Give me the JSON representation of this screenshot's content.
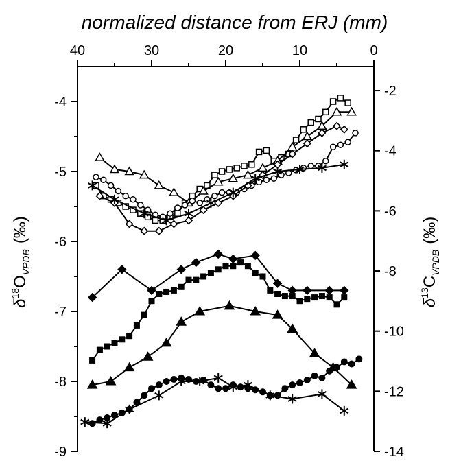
{
  "chart_data": {
    "type": "line",
    "title": "",
    "xlabel": "normalized distance from ERJ (mm)",
    "y_left_label": {
      "symbol": "δ",
      "sup": "18",
      "main": "O",
      "sub": "VPDB",
      "unit": "(‰)"
    },
    "y_right_label": {
      "symbol": "δ",
      "sup": "13",
      "main": "C",
      "sub": "VPDB",
      "unit": "(‰)"
    },
    "x_axis": {
      "position": "top",
      "reversed": true,
      "range": [
        40,
        0
      ],
      "ticks": [
        40,
        30,
        20,
        10,
        0
      ],
      "tick_labels": [
        "40",
        "30",
        "20",
        "10",
        "0"
      ]
    },
    "y_left": {
      "range": [
        -9,
        -3.5
      ],
      "ticks": [
        -9,
        -8,
        -7,
        -6,
        -5,
        -4
      ],
      "tick_labels": [
        "-9",
        "-8",
        "-7",
        "-6",
        "-5",
        "-4"
      ]
    },
    "y_right": {
      "range": [
        -14,
        -1.2
      ],
      "ticks": [
        -14,
        -12,
        -10,
        -8,
        -6,
        -4,
        -2
      ],
      "tick_labels": [
        "-14",
        "-12",
        "-10",
        "-8",
        "-6",
        "-4",
        "-2"
      ]
    },
    "grid": false,
    "legend": "none",
    "series": [
      {
        "marker": "open-square",
        "axis": "left",
        "points": [
          [
            37.5,
            -5.2
          ],
          [
            36.5,
            -5.35
          ],
          [
            35.5,
            -5.4
          ],
          [
            34.5,
            -5.45
          ],
          [
            33.5,
            -5.5
          ],
          [
            32.5,
            -5.55
          ],
          [
            31.5,
            -5.6
          ],
          [
            30.5,
            -5.65
          ],
          [
            29.5,
            -5.7
          ],
          [
            28.5,
            -5.7
          ],
          [
            27.5,
            -5.65
          ],
          [
            26.5,
            -5.6
          ],
          [
            25.5,
            -5.45
          ],
          [
            24.5,
            -5.35
          ],
          [
            23.5,
            -5.25
          ],
          [
            22.5,
            -5.2
          ],
          [
            21.5,
            -5.05
          ],
          [
            20.5,
            -5.0
          ],
          [
            19.5,
            -4.97
          ],
          [
            18.5,
            -4.95
          ],
          [
            17.5,
            -4.92
          ],
          [
            16.5,
            -4.9
          ],
          [
            15.5,
            -4.72
          ],
          [
            14.5,
            -4.7
          ],
          [
            13.5,
            -4.85
          ],
          [
            12.5,
            -4.8
          ],
          [
            11.5,
            -4.75
          ],
          [
            10.5,
            -4.55
          ],
          [
            9.5,
            -4.4
          ],
          [
            8.5,
            -4.3
          ],
          [
            7.5,
            -4.25
          ],
          [
            6.5,
            -4.15
          ],
          [
            5.5,
            -4.0
          ],
          [
            4.5,
            -3.95
          ],
          [
            3.5,
            -4.02
          ]
        ]
      },
      {
        "marker": "open-triangle",
        "axis": "left",
        "points": [
          [
            37,
            -4.8
          ],
          [
            35,
            -4.97
          ],
          [
            33,
            -5.0
          ],
          [
            31,
            -5.05
          ],
          [
            29,
            -5.2
          ],
          [
            27,
            -5.3
          ],
          [
            25,
            -5.45
          ],
          [
            23,
            -5.28
          ],
          [
            21,
            -5.15
          ],
          [
            19,
            -5.1
          ],
          [
            17,
            -5.05
          ],
          [
            15,
            -4.95
          ],
          [
            13,
            -4.85
          ],
          [
            11,
            -4.65
          ],
          [
            9,
            -4.5
          ],
          [
            7,
            -4.35
          ],
          [
            5,
            -4.15
          ],
          [
            3,
            -4.15
          ]
        ]
      },
      {
        "marker": "open-circle",
        "axis": "left",
        "points": [
          [
            37.5,
            -5.08
          ],
          [
            36.5,
            -5.12
          ],
          [
            35.5,
            -5.2
          ],
          [
            34.5,
            -5.28
          ],
          [
            33.5,
            -5.35
          ],
          [
            32.5,
            -5.4
          ],
          [
            31.5,
            -5.48
          ],
          [
            30.5,
            -5.55
          ],
          [
            29.5,
            -5.62
          ],
          [
            28.5,
            -5.65
          ],
          [
            27.5,
            -5.6
          ],
          [
            26.5,
            -5.52
          ],
          [
            25.5,
            -5.48
          ],
          [
            24.5,
            -5.42
          ],
          [
            23.5,
            -5.45
          ],
          [
            22.5,
            -5.4
          ],
          [
            21.5,
            -5.35
          ],
          [
            20.5,
            -5.3
          ],
          [
            19.5,
            -5.3
          ],
          [
            18.5,
            -5.3
          ],
          [
            17.5,
            -5.25
          ],
          [
            16.5,
            -5.2
          ],
          [
            15.5,
            -5.15
          ],
          [
            14.5,
            -5.12
          ],
          [
            13.5,
            -5.1
          ],
          [
            12.5,
            -5.05
          ],
          [
            11.5,
            -5.02
          ],
          [
            10.5,
            -4.98
          ],
          [
            9.5,
            -4.95
          ],
          [
            8.5,
            -4.92
          ],
          [
            7.5,
            -4.92
          ],
          [
            6.5,
            -4.85
          ],
          [
            5.5,
            -4.65
          ],
          [
            4.5,
            -4.62
          ],
          [
            3.5,
            -4.58
          ],
          [
            2.5,
            -4.45
          ]
        ]
      },
      {
        "marker": "open-diamond",
        "axis": "left",
        "points": [
          [
            37,
            -5.35
          ],
          [
            35,
            -5.45
          ],
          [
            33,
            -5.75
          ],
          [
            31,
            -5.85
          ],
          [
            29,
            -5.85
          ],
          [
            27,
            -5.75
          ],
          [
            25,
            -5.7
          ],
          [
            23,
            -5.55
          ],
          [
            21,
            -5.45
          ],
          [
            19,
            -5.35
          ],
          [
            17,
            -5.2
          ],
          [
            15,
            -5.05
          ],
          [
            13,
            -4.9
          ],
          [
            11,
            -4.75
          ],
          [
            9,
            -4.6
          ],
          [
            7,
            -4.45
          ],
          [
            5,
            -4.35
          ],
          [
            4,
            -4.4
          ]
        ]
      },
      {
        "marker": "asterisk",
        "axis": "left",
        "points": [
          [
            38,
            -5.2
          ],
          [
            35,
            -5.4
          ],
          [
            31,
            -5.6
          ],
          [
            28,
            -5.7
          ],
          [
            25,
            -5.6
          ],
          [
            22,
            -5.45
          ],
          [
            19,
            -5.3
          ],
          [
            16,
            -5.1
          ],
          [
            13,
            -5.0
          ],
          [
            10,
            -4.97
          ],
          [
            7,
            -4.95
          ],
          [
            4,
            -4.9
          ]
        ]
      },
      {
        "marker": "filled-diamond",
        "axis": "left",
        "points": [
          [
            38,
            -6.8
          ],
          [
            34,
            -6.4
          ],
          [
            30,
            -6.7
          ],
          [
            26,
            -6.4
          ],
          [
            24,
            -6.3
          ],
          [
            21,
            -6.18
          ],
          [
            19,
            -6.25
          ],
          [
            16,
            -6.2
          ],
          [
            13,
            -6.6
          ],
          [
            11,
            -6.7
          ],
          [
            9,
            -6.7
          ],
          [
            6,
            -6.7
          ],
          [
            4,
            -6.7
          ]
        ]
      },
      {
        "marker": "filled-square",
        "axis": "left",
        "points": [
          [
            38,
            -7.7
          ],
          [
            37,
            -7.55
          ],
          [
            36,
            -7.5
          ],
          [
            35,
            -7.45
          ],
          [
            34,
            -7.4
          ],
          [
            33,
            -7.35
          ],
          [
            32,
            -7.2
          ],
          [
            31,
            -7.05
          ],
          [
            30,
            -6.85
          ],
          [
            29,
            -6.75
          ],
          [
            28,
            -6.72
          ],
          [
            27,
            -6.7
          ],
          [
            26,
            -6.65
          ],
          [
            25,
            -6.55
          ],
          [
            24,
            -6.55
          ],
          [
            23,
            -6.5
          ],
          [
            22,
            -6.45
          ],
          [
            21,
            -6.4
          ],
          [
            20,
            -6.35
          ],
          [
            19,
            -6.35
          ],
          [
            18,
            -6.3
          ],
          [
            17,
            -6.35
          ],
          [
            16,
            -6.45
          ],
          [
            15,
            -6.5
          ],
          [
            14,
            -6.7
          ],
          [
            13,
            -6.75
          ],
          [
            12,
            -6.78
          ],
          [
            11,
            -6.78
          ],
          [
            10,
            -6.85
          ],
          [
            9,
            -6.82
          ],
          [
            8,
            -6.8
          ],
          [
            7,
            -6.78
          ],
          [
            6,
            -6.8
          ],
          [
            5,
            -6.9
          ],
          [
            4,
            -6.8
          ]
        ]
      },
      {
        "marker": "filled-triangle",
        "axis": "left",
        "points": [
          [
            38,
            -8.05
          ],
          [
            35.5,
            -8.0
          ],
          [
            33,
            -7.8
          ],
          [
            30.5,
            -7.65
          ],
          [
            28,
            -7.45
          ],
          [
            26,
            -7.15
          ],
          [
            23.5,
            -7.0
          ],
          [
            19.5,
            -6.92
          ],
          [
            16,
            -7.0
          ],
          [
            13,
            -7.05
          ],
          [
            11,
            -7.25
          ],
          [
            8,
            -7.6
          ],
          [
            5.5,
            -7.8
          ],
          [
            3,
            -8.05
          ]
        ]
      },
      {
        "marker": "filled-circle",
        "axis": "left",
        "points": [
          [
            38,
            -8.6
          ],
          [
            37,
            -8.55
          ],
          [
            36,
            -8.52
          ],
          [
            35,
            -8.48
          ],
          [
            34,
            -8.45
          ],
          [
            33,
            -8.4
          ],
          [
            32,
            -8.3
          ],
          [
            31,
            -8.2
          ],
          [
            30,
            -8.1
          ],
          [
            29,
            -8.05
          ],
          [
            28,
            -8.0
          ],
          [
            27,
            -7.97
          ],
          [
            26,
            -7.95
          ],
          [
            25,
            -7.97
          ],
          [
            24,
            -8.0
          ],
          [
            23,
            -7.98
          ],
          [
            22,
            -8.05
          ],
          [
            21,
            -8.1
          ],
          [
            20,
            -8.1
          ],
          [
            19,
            -8.05
          ],
          [
            18,
            -8.08
          ],
          [
            17,
            -8.1
          ],
          [
            16,
            -8.12
          ],
          [
            15,
            -8.15
          ],
          [
            14,
            -8.2
          ],
          [
            13,
            -8.2
          ],
          [
            12,
            -8.1
          ],
          [
            11,
            -8.05
          ],
          [
            10,
            -8.02
          ],
          [
            9,
            -7.98
          ],
          [
            8,
            -7.92
          ],
          [
            7,
            -7.95
          ],
          [
            6,
            -7.85
          ],
          [
            5,
            -7.8
          ],
          [
            4,
            -7.72
          ],
          [
            3,
            -7.75
          ],
          [
            2,
            -7.68
          ]
        ]
      },
      {
        "marker": "asterisk",
        "axis": "left",
        "points": [
          [
            39,
            -8.58
          ],
          [
            36,
            -8.6
          ],
          [
            33,
            -8.4
          ],
          [
            29,
            -8.2
          ],
          [
            26,
            -8.0
          ],
          [
            23.5,
            -8.0
          ],
          [
            21,
            -7.95
          ],
          [
            19,
            -8.08
          ],
          [
            17,
            -8.05
          ],
          [
            14,
            -8.2
          ],
          [
            11,
            -8.25
          ],
          [
            7,
            -8.18
          ],
          [
            4,
            -8.42
          ]
        ]
      }
    ]
  }
}
